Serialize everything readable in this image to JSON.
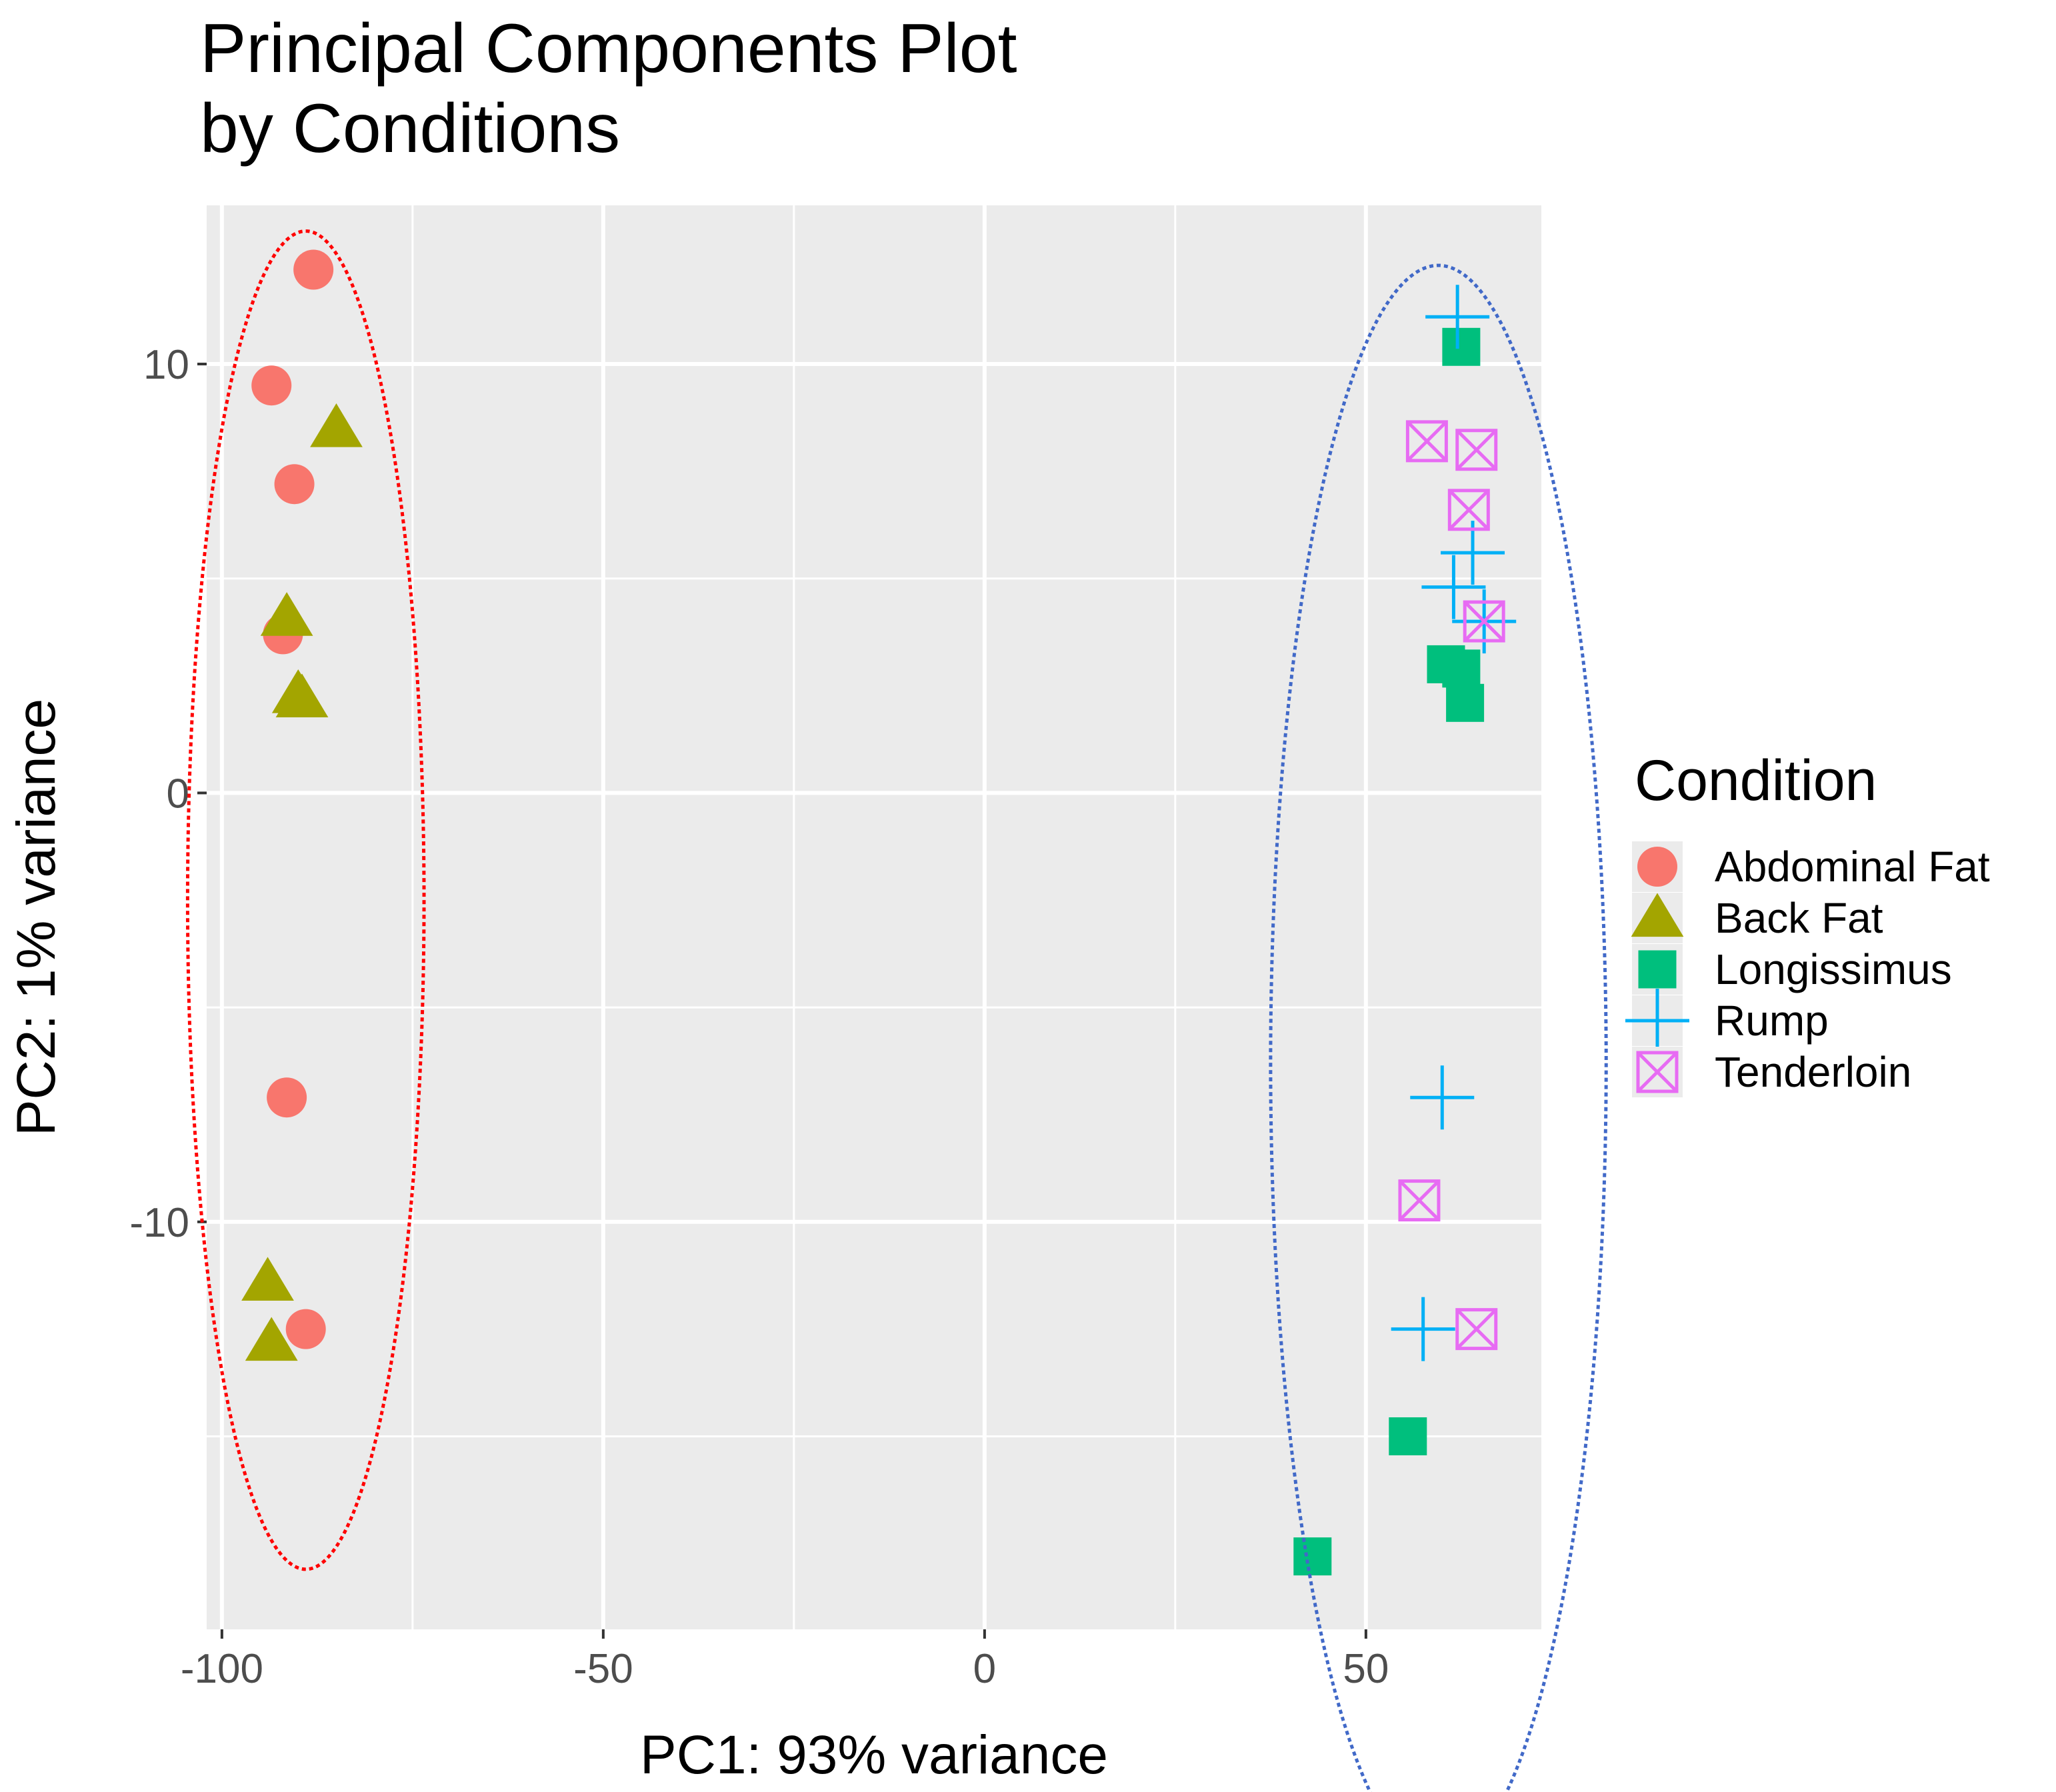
{
  "chart_data": {
    "type": "scatter",
    "title_lines": [
      "Principal Components Plot",
      "by Conditions"
    ],
    "xlabel": "PC1: 93% variance",
    "ylabel": "PC2: 1% variance",
    "xlim": [
      -102,
      73
    ],
    "ylim": [
      -19.5,
      13.7
    ],
    "x_ticks": [
      -100,
      -50,
      0,
      50
    ],
    "x_tick_labels": [
      "-100",
      "-50",
      "0",
      "50"
    ],
    "y_ticks": [
      -10,
      0,
      10
    ],
    "y_tick_labels": [
      "-10",
      "0",
      "10"
    ],
    "x_minor_ticks": [
      -75,
      -25,
      25
    ],
    "y_minor_ticks": [
      -15,
      -5,
      5
    ],
    "grid": true,
    "legend": {
      "title": "Condition",
      "position": "right"
    },
    "series": [
      {
        "name": "Abdominal Fat",
        "shape": "circle",
        "color": "#F8766D",
        "points": [
          [
            -88,
            12.2
          ],
          [
            -93.5,
            9.5
          ],
          [
            -90.5,
            7.2
          ],
          [
            -92,
            3.7
          ],
          [
            -91.5,
            -7.1
          ],
          [
            -89,
            -12.5
          ]
        ]
      },
      {
        "name": "Back Fat",
        "shape": "triangle",
        "color": "#A3A500",
        "points": [
          [
            -85,
            8.5
          ],
          [
            -91.5,
            4.1
          ],
          [
            -90,
            2.3
          ],
          [
            -89.5,
            2.2
          ],
          [
            -94,
            -11.4
          ],
          [
            -93.5,
            -12.8
          ]
        ]
      },
      {
        "name": "Longissimus",
        "shape": "square",
        "color": "#00BF7D",
        "points": [
          [
            62.5,
            10.4
          ],
          [
            60.5,
            3.0
          ],
          [
            62.5,
            2.9
          ],
          [
            63,
            2.1
          ],
          [
            55.5,
            -15.0
          ],
          [
            43,
            -17.8
          ]
        ]
      },
      {
        "name": "Rump",
        "shape": "plus",
        "color": "#00B0F6",
        "points": [
          [
            62,
            11.1
          ],
          [
            64,
            5.6
          ],
          [
            61.5,
            4.8
          ],
          [
            65.5,
            4.0
          ],
          [
            60,
            -7.1
          ],
          [
            57.5,
            -12.5
          ]
        ]
      },
      {
        "name": "Tenderloin",
        "shape": "boxcross",
        "color": "#E76BF3",
        "points": [
          [
            58,
            8.2
          ],
          [
            64.5,
            8.0
          ],
          [
            63.5,
            6.6
          ],
          [
            65.5,
            4.0
          ],
          [
            57,
            -9.5
          ],
          [
            64.5,
            -12.5
          ]
        ]
      }
    ],
    "annotations": [
      {
        "type": "ellipse",
        "color": "#FF0000",
        "cx": -89,
        "cy": -2.5,
        "rx": 15.5,
        "ry": 15.6
      },
      {
        "type": "ellipse",
        "color": "#4169C8",
        "cx": 59.5,
        "cy": -6.3,
        "rx": 22,
        "ry": 18.6
      }
    ]
  }
}
